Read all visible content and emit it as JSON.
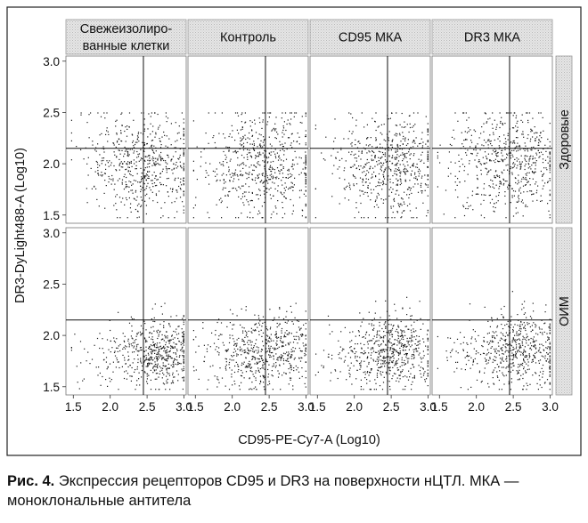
{
  "chart_data": {
    "type": "scatter",
    "layout": "facet-grid",
    "xlabel": "CD95-PE-Cy7-A (Log10)",
    "ylabel": "DR3-DyLight488-A (Log10)",
    "xlim": [
      1.4,
      3.03
    ],
    "ylim": [
      1.42,
      3.05
    ],
    "xticks": [
      1.5,
      2.0,
      2.5,
      3.0
    ],
    "yticks": [
      1.5,
      2.0,
      2.5,
      3.0
    ],
    "xtick_labels": [
      "1.5",
      "2.0",
      "2.5",
      "3.0"
    ],
    "ytick_labels": [
      "1.5",
      "2.0",
      "2.5",
      "3.0"
    ],
    "gate": {
      "x": 2.45,
      "y": 2.15
    },
    "columns": [
      {
        "label_lines": [
          "Свежеизолиро-",
          "ванные клетки"
        ]
      },
      {
        "label_lines": [
          "Контроль"
        ]
      },
      {
        "label_lines": [
          "CD95 МКА"
        ]
      },
      {
        "label_lines": [
          "DR3 МКА"
        ]
      }
    ],
    "rows": [
      {
        "label": "Здоровые"
      },
      {
        "label": "ОИМ"
      }
    ],
    "point_clouds": [
      [
        {
          "cx": 2.6,
          "cy": 2.0,
          "sx": 0.32,
          "sy": 0.26,
          "n": 380
        },
        {
          "cx": 2.15,
          "cy": 2.05,
          "sx": 0.3,
          "sy": 0.24,
          "n": 220
        }
      ],
      [
        {
          "cx": 2.55,
          "cy": 2.0,
          "sx": 0.33,
          "sy": 0.26,
          "n": 420
        },
        {
          "cx": 2.1,
          "cy": 2.0,
          "sx": 0.3,
          "sy": 0.25,
          "n": 200
        }
      ],
      [
        {
          "cx": 2.6,
          "cy": 1.98,
          "sx": 0.3,
          "sy": 0.25,
          "n": 430
        },
        {
          "cx": 2.1,
          "cy": 2.0,
          "sx": 0.3,
          "sy": 0.24,
          "n": 170
        }
      ],
      [
        {
          "cx": 2.55,
          "cy": 2.0,
          "sx": 0.32,
          "sy": 0.25,
          "n": 420
        },
        {
          "cx": 2.1,
          "cy": 2.05,
          "sx": 0.3,
          "sy": 0.25,
          "n": 190
        }
      ],
      [
        {
          "cx": 2.7,
          "cy": 1.85,
          "sx": 0.22,
          "sy": 0.17,
          "n": 420
        },
        {
          "cx": 2.2,
          "cy": 1.8,
          "sx": 0.32,
          "sy": 0.17,
          "n": 170
        }
      ],
      [
        {
          "cx": 2.55,
          "cy": 1.87,
          "sx": 0.28,
          "sy": 0.17,
          "n": 420
        },
        {
          "cx": 2.05,
          "cy": 1.82,
          "sx": 0.3,
          "sy": 0.17,
          "n": 180
        }
      ],
      [
        {
          "cx": 2.6,
          "cy": 1.87,
          "sx": 0.25,
          "sy": 0.17,
          "n": 430
        },
        {
          "cx": 2.1,
          "cy": 1.82,
          "sx": 0.3,
          "sy": 0.16,
          "n": 180
        }
      ],
      [
        {
          "cx": 2.65,
          "cy": 1.87,
          "sx": 0.25,
          "sy": 0.18,
          "n": 420
        },
        {
          "cx": 2.15,
          "cy": 1.82,
          "sx": 0.3,
          "sy": 0.16,
          "n": 170
        }
      ]
    ]
  },
  "caption": {
    "label": "Рис. 4.",
    "text": " Экспрессия рецепторов CD95 и DR3 на поверхности нЦТЛ. МКА — моноклональные антитела"
  }
}
